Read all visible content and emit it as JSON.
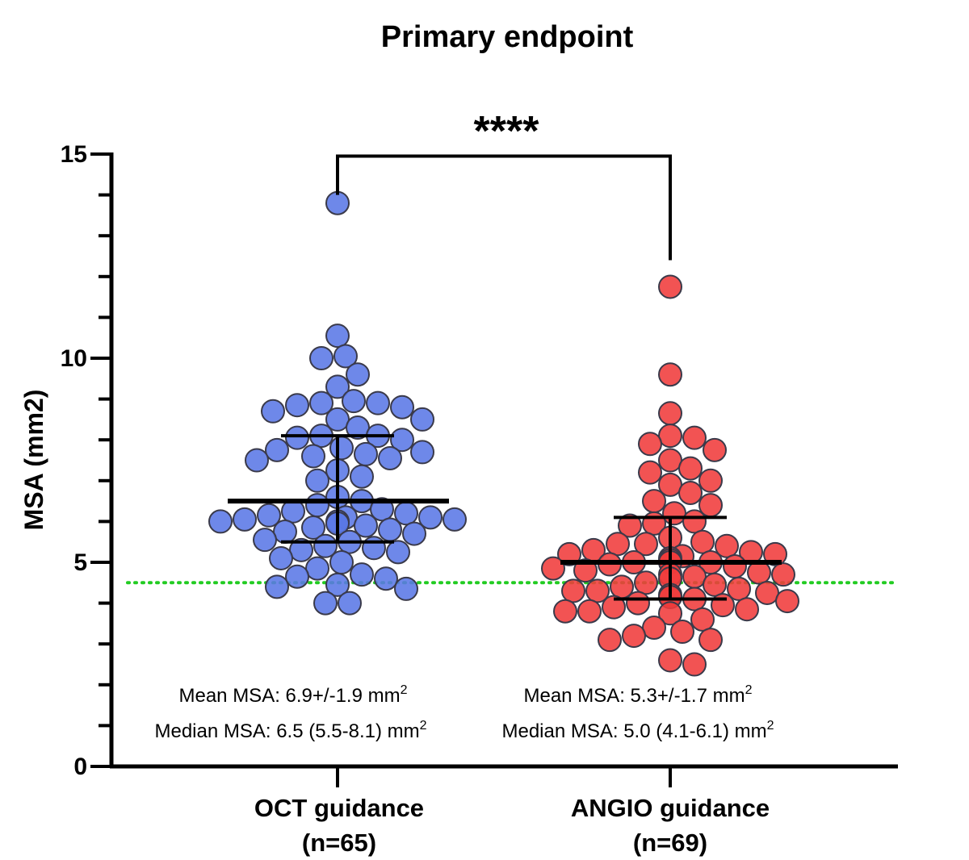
{
  "chart_data": {
    "type": "scatter",
    "title": "Primary endpoint",
    "xlabel": "",
    "ylabel": "MSA (mm2)",
    "ylim": [
      0,
      15
    ],
    "yticks": [
      "0",
      "5",
      "10",
      "15"
    ],
    "significance": "****",
    "reference_line": {
      "value": 4.5,
      "style": "dotted",
      "color": "#22cc22"
    },
    "colors": {
      "oct": "#5a78e6",
      "angio": "#f03b3b",
      "stroke": "#3a3a4a"
    },
    "categories": [
      {
        "label": "OCT guidance",
        "n_label": "(n=65)"
      },
      {
        "label": "ANGIO guidance",
        "n_label": "(n=69)"
      }
    ],
    "annotations": [
      {
        "mean_text": "Mean MSA: 6.9+/-1.9 mm",
        "median_text": "Median MSA: 6.5 (5.5-8.1) mm",
        "unit_exp": "2"
      },
      {
        "mean_text": "Mean MSA: 5.3+/-1.7 mm",
        "median_text": "Median MSA: 5.0 (4.1-6.1) mm",
        "unit_exp": "2"
      }
    ],
    "series": [
      {
        "name": "OCT guidance",
        "median": 6.5,
        "iqr": [
          5.5,
          8.1
        ],
        "values": [
          13.8,
          10.55,
          10.05,
          10.0,
          9.6,
          9.3,
          8.95,
          8.9,
          8.9,
          8.85,
          8.8,
          8.7,
          8.5,
          8.5,
          8.3,
          8.1,
          8.1,
          8.05,
          8.0,
          7.8,
          7.75,
          7.7,
          7.65,
          7.6,
          7.55,
          7.5,
          7.25,
          7.1,
          7.0,
          6.6,
          6.5,
          6.4,
          6.3,
          6.25,
          6.2,
          6.15,
          6.1,
          6.1,
          6.05,
          6.05,
          6.0,
          6.0,
          5.95,
          5.9,
          5.85,
          5.8,
          5.75,
          5.7,
          5.55,
          5.5,
          5.4,
          5.35,
          5.3,
          5.25,
          5.1,
          5.0,
          4.85,
          4.7,
          4.65,
          4.6,
          4.45,
          4.4,
          4.35,
          4.0,
          4.0
        ]
      },
      {
        "name": "ANGIO guidance",
        "median": 5.0,
        "iqr": [
          4.1,
          6.1
        ],
        "values": [
          11.75,
          9.6,
          8.65,
          8.1,
          8.05,
          7.9,
          7.75,
          7.5,
          7.3,
          7.2,
          7.0,
          6.9,
          6.7,
          6.5,
          6.4,
          6.2,
          6.0,
          5.95,
          5.9,
          5.6,
          5.5,
          5.45,
          5.45,
          5.4,
          5.3,
          5.25,
          5.2,
          5.2,
          5.15,
          5.1,
          5.05,
          5.0,
          5.0,
          5.0,
          4.95,
          4.9,
          4.85,
          4.8,
          4.75,
          4.7,
          4.7,
          4.65,
          4.6,
          4.5,
          4.45,
          4.4,
          4.35,
          4.3,
          4.3,
          4.25,
          4.2,
          4.15,
          4.1,
          4.05,
          4.0,
          3.95,
          3.9,
          3.85,
          3.8,
          3.8,
          3.75,
          3.6,
          3.4,
          3.3,
          3.2,
          3.1,
          3.1,
          2.6,
          2.5
        ]
      }
    ]
  }
}
